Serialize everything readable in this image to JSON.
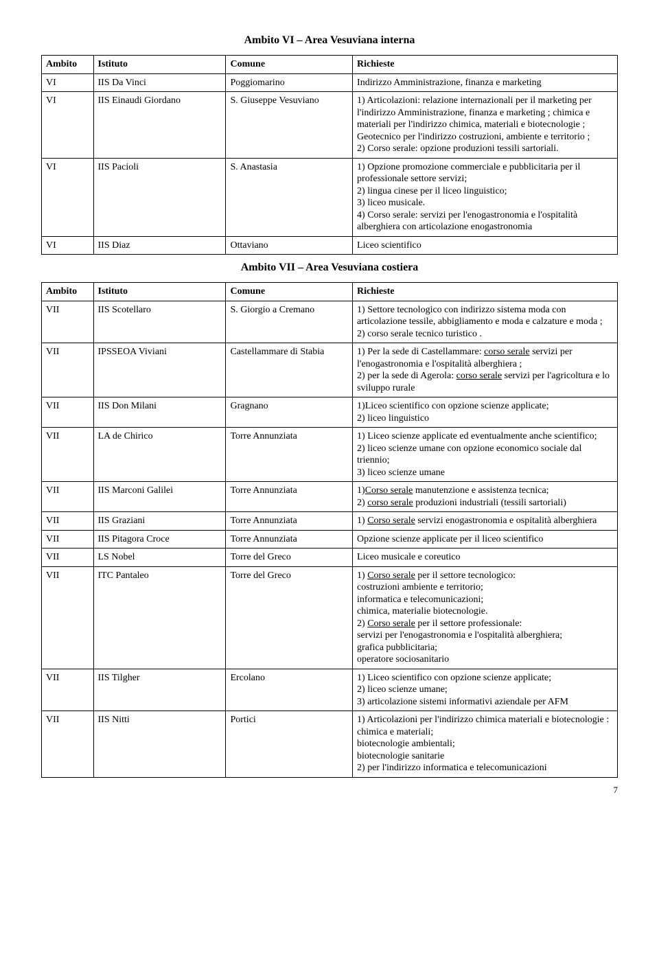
{
  "section1": {
    "title": "Ambito VI – Area Vesuviana interna",
    "headers": [
      "Ambito",
      "Istituto",
      "Comune",
      "Richieste"
    ],
    "rows": [
      {
        "a": "VI",
        "b": "IIS Da Vinci",
        "c": "Poggiomarino",
        "d": "Indirizzo Amministrazione, finanza e marketing"
      },
      {
        "a": "VI",
        "b": "IIS Einaudi Giordano",
        "c": "S. Giuseppe Vesuviano",
        "d": "1) Articolazioni: relazione internazionali per il marketing per l'indirizzo Amministrazione, finanza e marketing ; chimica e materiali per l'indirizzo chimica, materiali e biotecnologie ; Geotecnico per l'indirizzo costruzioni, ambiente e territorio ;\n2) Corso serale: opzione produzioni tessili sartoriali."
      },
      {
        "a": "VI",
        "b": "IIS Pacioli",
        "c": "S. Anastasia",
        "d": "1) Opzione promozione commerciale e pubblicitaria per il professionale settore servizi;\n2) lingua cinese per il liceo linguistico;\n3) liceo musicale.\n4) Corso serale: servizi per l'enogastronomia e l'ospitalità alberghiera con articolazione enogastronomia"
      },
      {
        "a": "VI",
        "b": "IIS Diaz",
        "c": "Ottaviano",
        "d": "Liceo scientifico"
      }
    ]
  },
  "section2": {
    "title": "Ambito VII – Area Vesuviana costiera",
    "headers": [
      "Ambito",
      "Istituto",
      "Comune",
      "Richieste"
    ],
    "rows": [
      {
        "a": "VII",
        "b": "IIS Scotellaro",
        "c": "S. Giorgio a Cremano",
        "d": "1) Settore tecnologico con indirizzo sistema moda con articolazione tessile, abbigliamento e moda e calzature e moda ;\n2) corso serale tecnico turistico ."
      },
      {
        "a": "VII",
        "b": "IPSSEOA Viviani",
        "c": "Castellammare di Stabia",
        "d": "1) Per la sede di Castellammare: <span class=\"u\">corso serale</span> servizi per l'enogastronomia e l'ospitalità alberghiera ;\n2) per la sede di Agerola: <span class=\"u\">corso serale</span> servizi per l'agricoltura e lo sviluppo rurale "
      },
      {
        "a": "VII",
        "b": "IIS Don Milani",
        "c": "Gragnano",
        "d": "1)Liceo scientifico con opzione scienze applicate;\n2) liceo linguistico"
      },
      {
        "a": "VII",
        "b": "LA de Chirico",
        "c": "Torre Annunziata",
        "d": "1) Liceo scienze applicate ed eventualmente anche scientifico;\n2) liceo scienze umane con opzione economico sociale dal triennio;\n3) liceo scienze umane"
      },
      {
        "a": "VII",
        "b": "IIS Marconi Galilei",
        "c": "Torre Annunziata",
        "d": "1)<span class=\"u\">Corso serale</span> manutenzione e assistenza tecnica;\n2) <span class=\"u\">corso serale</span> produzioni industriali (tessili sartoriali)"
      },
      {
        "a": "VII",
        "b": "IIS Graziani",
        "c": "Torre Annunziata",
        "d": "1) <span class=\"u\">Corso serale</span> servizi enogastronomia e ospitalità alberghiera"
      },
      {
        "a": "VII",
        "b": "IIS Pitagora Croce",
        "c": "Torre Annunziata",
        "d": "Opzione scienze applicate per il liceo scientifico"
      },
      {
        "a": "VII",
        "b": "LS Nobel",
        "c": "Torre del Greco",
        "d": "Liceo musicale e coreutico"
      },
      {
        "a": "VII",
        "b": "ITC Pantaleo",
        "c": "Torre del Greco",
        "d": "1) <span class=\"u\">Corso serale</span> per il settore tecnologico:\ncostruzioni ambiente e territorio;\ninformatica e telecomunicazioni;\nchimica, materialie biotecnologie.\n2) <span class=\"u\">Corso serale</span> per il settore professionale:\nservizi per l'enogastronomia e l'ospitalità alberghiera;\ngrafica pubblicitaria;\noperatore sociosanitario"
      },
      {
        "a": "VII",
        "b": "IIS Tilgher",
        "c": "Ercolano",
        "d": "1) Liceo scientifico con opzione scienze applicate;\n2) liceo scienze umane;\n3) articolazione sistemi informativi aziendale per AFM"
      },
      {
        "a": "VII",
        "b": "IIS Nitti",
        "c": "Portici",
        "d": "1) Articolazioni per l'indirizzo chimica materiali e biotecnologie :\nchimica e materiali;\nbiotecnologie ambientali;\nbiotecnologie sanitarie\n2) per l'indirizzo informatica e telecomunicazioni"
      }
    ]
  },
  "pageNumber": "7"
}
